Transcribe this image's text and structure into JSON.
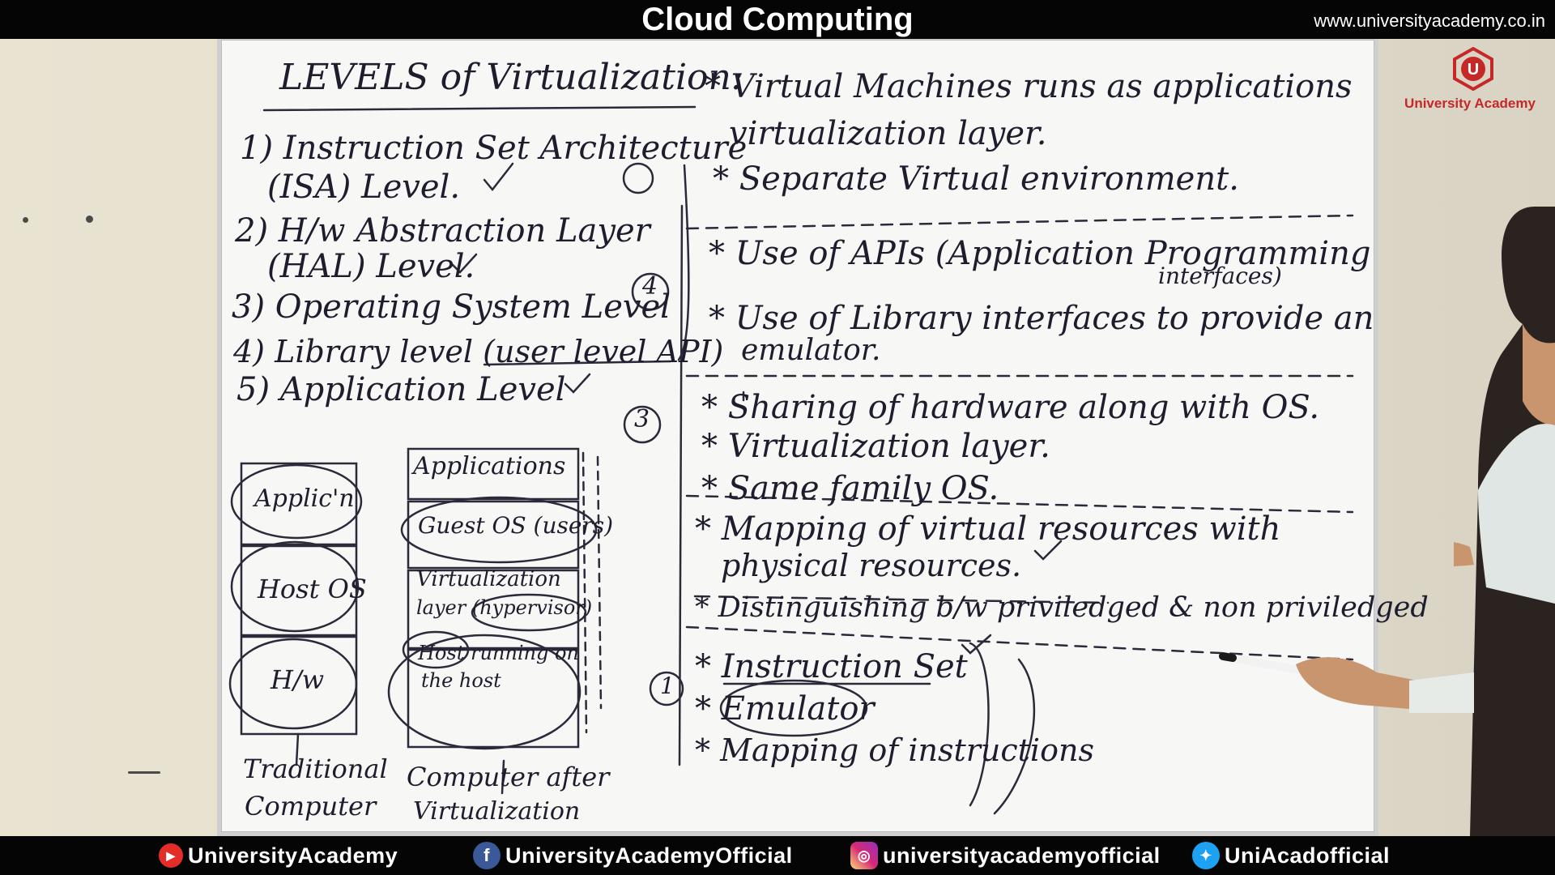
{
  "header": {
    "title": "Cloud Computing",
    "website": "www.universityacademy.co.in"
  },
  "logo": {
    "letter": "U",
    "name": "University Academy"
  },
  "board": {
    "heading": "LEVELS of Virtualization:",
    "levels": [
      "1) Instruction Set Architecture",
      "(ISA) Level.",
      "2) H/w Abstraction Layer",
      "(HAL) Level.",
      "3) Operating System Level",
      "4) Library level (user level API)",
      "5) Application Level"
    ],
    "circled_numbers": [
      "4",
      "3",
      "1"
    ],
    "app_level_notes": [
      "* Virtual Machines runs as applications",
      "virtualization layer.",
      "* Separate Virtual environment."
    ],
    "library_notes": [
      "* Use of APIs (Application Programming",
      "interfaces)",
      "* Use of Library interfaces to provide an",
      "emulator."
    ],
    "os_notes": [
      "* Sharing of hardware along with OS.",
      "* Virtualization layer.",
      "* Same family OS."
    ],
    "hal_notes": [
      "* Mapping of virtual resources with",
      "physical resources.",
      "* Distinguishing b/w priviledged & non priviledged"
    ],
    "isa_notes": [
      "* Instruction Set",
      "* Emulator",
      "* Mapping of instructions"
    ],
    "traditional_stack": [
      "Applic'n",
      "Host OS",
      "H/w"
    ],
    "traditional_caption": [
      "Traditional",
      "Computer"
    ],
    "virtual_stack": [
      "Applications",
      "Guest OS (users)",
      "Virtualization",
      "layer (hypervisor)",
      "Host running on",
      "the host"
    ],
    "virtual_caption": [
      "Computer after",
      "Virtualization"
    ]
  },
  "footer": {
    "youtube": "UniversityAcademy",
    "facebook": "UniversityAcademyOfficial",
    "instagram": "universityacademyofficial",
    "twitter": "UniAcadofficial"
  },
  "colors": {
    "youtube": "#e52d27",
    "facebook": "#3b5998",
    "instagram": "#d6249f",
    "twitter": "#1da1f2",
    "logo_red": "#c62828"
  }
}
